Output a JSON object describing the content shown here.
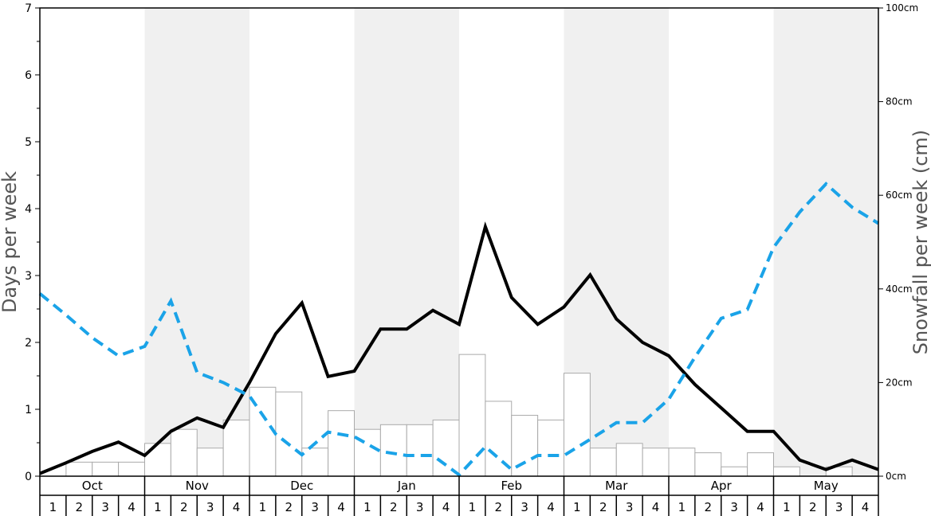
{
  "chart_data": {
    "type": "bar",
    "title": "",
    "ylabel_left": "Days per week",
    "ylabel_right": "Snowfall per week (cm)",
    "ylim_left": [
      0,
      7
    ],
    "ylim_right": [
      0,
      100
    ],
    "yticks_left": [
      "0",
      "1",
      "2",
      "3",
      "4",
      "5",
      "6",
      "7"
    ],
    "yticks_right": [
      "0cm",
      "20cm",
      "40cm",
      "60cm",
      "80cm",
      "100cm"
    ],
    "months": [
      "Oct",
      "Nov",
      "Dec",
      "Jan",
      "Feb",
      "Mar",
      "Apr",
      "May"
    ],
    "week_labels": [
      "1",
      "2",
      "3",
      "4",
      "1",
      "2",
      "3",
      "4",
      "1",
      "2",
      "3",
      "4",
      "1",
      "2",
      "3",
      "4",
      "1",
      "2",
      "3",
      "4",
      "1",
      "2",
      "3",
      "4",
      "1",
      "2",
      "3",
      "4",
      "1",
      "2",
      "3",
      "4"
    ],
    "colors": {
      "bars_fill": "#ffffff",
      "bars_stroke": "#aaaaaa",
      "solid_line": "#000000",
      "dashed_line": "#1aa3e8",
      "band_shade": "#f0f0f0"
    },
    "series": [
      {
        "type": "bar",
        "axis": "right",
        "values": [
          0,
          3,
          3,
          3,
          7,
          10,
          6,
          12,
          19,
          18,
          6,
          14,
          10,
          11,
          11,
          12,
          26,
          16,
          13,
          12,
          22,
          6,
          7,
          6,
          6,
          5,
          2,
          5,
          2,
          0,
          2,
          0
        ]
      },
      {
        "type": "line",
        "style": "solid",
        "axis": "left",
        "values": [
          0.04,
          0.2,
          0.37,
          0.51,
          0.31,
          0.67,
          0.87,
          0.73,
          1.4,
          2.13,
          2.59,
          1.49,
          1.57,
          2.2,
          2.2,
          2.48,
          2.27,
          3.73,
          2.67,
          2.27,
          2.53,
          3.01,
          2.35,
          2.0,
          1.8,
          1.37,
          1.02,
          0.67,
          0.67,
          0.24,
          0.1,
          0.24,
          0.1
        ]
      },
      {
        "type": "line",
        "style": "dashed",
        "axis": "left",
        "values": [
          2.73,
          2.41,
          2.07,
          1.8,
          1.94,
          2.62,
          1.55,
          1.4,
          1.2,
          0.63,
          0.32,
          0.66,
          0.59,
          0.37,
          0.31,
          0.31,
          0.02,
          0.44,
          0.1,
          0.31,
          0.31,
          0.55,
          0.8,
          0.8,
          1.15,
          1.78,
          2.36,
          2.49,
          3.42,
          3.95,
          4.37,
          4.02,
          3.78
        ]
      }
    ]
  }
}
